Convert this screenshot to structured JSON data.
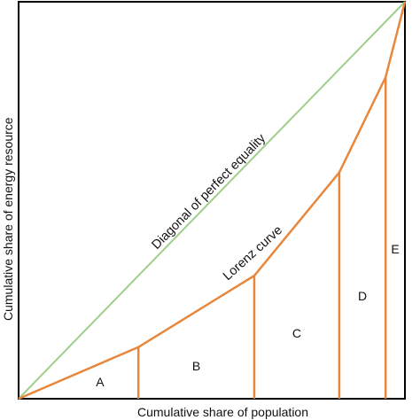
{
  "diagram": {
    "title": "",
    "x_axis_label": "Cumulative share of population",
    "y_axis_label": "Cumulative share of energy resource",
    "equality_line_label": "Diagonal of perfect equality",
    "lorenz_curve_label": "Lorenz curve",
    "colors": {
      "equality_line": "#9fcf8a",
      "lorenz_curve": "#e8873b",
      "frame": "#000000",
      "text": "#111111"
    }
  },
  "chart_data": {
    "type": "line",
    "title": "",
    "xlabel": "Cumulative share of population",
    "ylabel": "Cumulative share of energy resource",
    "xlim": [
      0,
      1
    ],
    "ylim": [
      0,
      1
    ],
    "grid": false,
    "series": [
      {
        "name": "Diagonal of perfect equality",
        "x": [
          0,
          1
        ],
        "y": [
          0,
          1
        ]
      },
      {
        "name": "Lorenz curve",
        "x": [
          0,
          0.31,
          0.61,
          0.83,
          0.95,
          1.0
        ],
        "y": [
          0,
          0.13,
          0.31,
          0.57,
          0.81,
          1.0
        ]
      }
    ],
    "regions": [
      {
        "label": "A",
        "x_range": [
          0,
          0.31
        ]
      },
      {
        "label": "B",
        "x_range": [
          0.31,
          0.61
        ]
      },
      {
        "label": "C",
        "x_range": [
          0.61,
          0.83
        ]
      },
      {
        "label": "D",
        "x_range": [
          0.83,
          0.95
        ]
      },
      {
        "label": "E",
        "x_range": [
          0.95,
          1.0
        ]
      }
    ]
  }
}
